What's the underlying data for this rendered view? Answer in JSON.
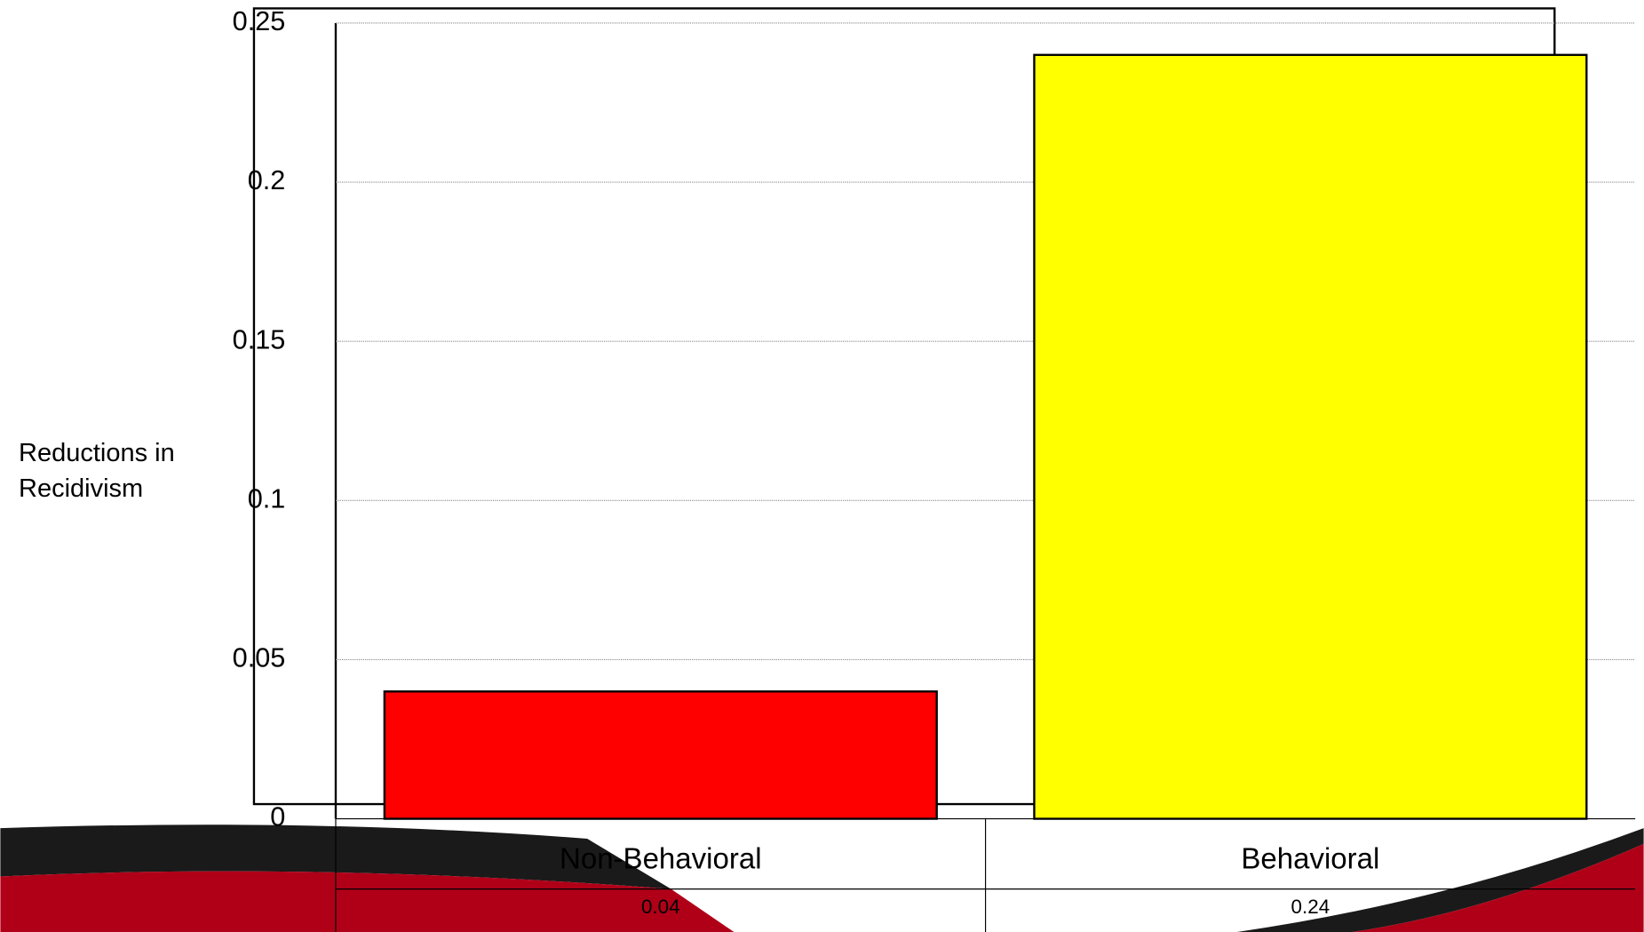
{
  "chart_data": {
    "type": "bar",
    "y_label": "Reductions in Recidivism",
    "categories": [
      "Non-Behavioral",
      "Behavioral"
    ],
    "values": [
      0.04,
      0.24
    ],
    "colors": [
      "#ff0000",
      "#ffff00"
    ],
    "ylim": [
      0,
      0.25
    ],
    "yticks": [
      0,
      0.05,
      0.1,
      0.15,
      0.2,
      0.25
    ],
    "grid": true
  }
}
